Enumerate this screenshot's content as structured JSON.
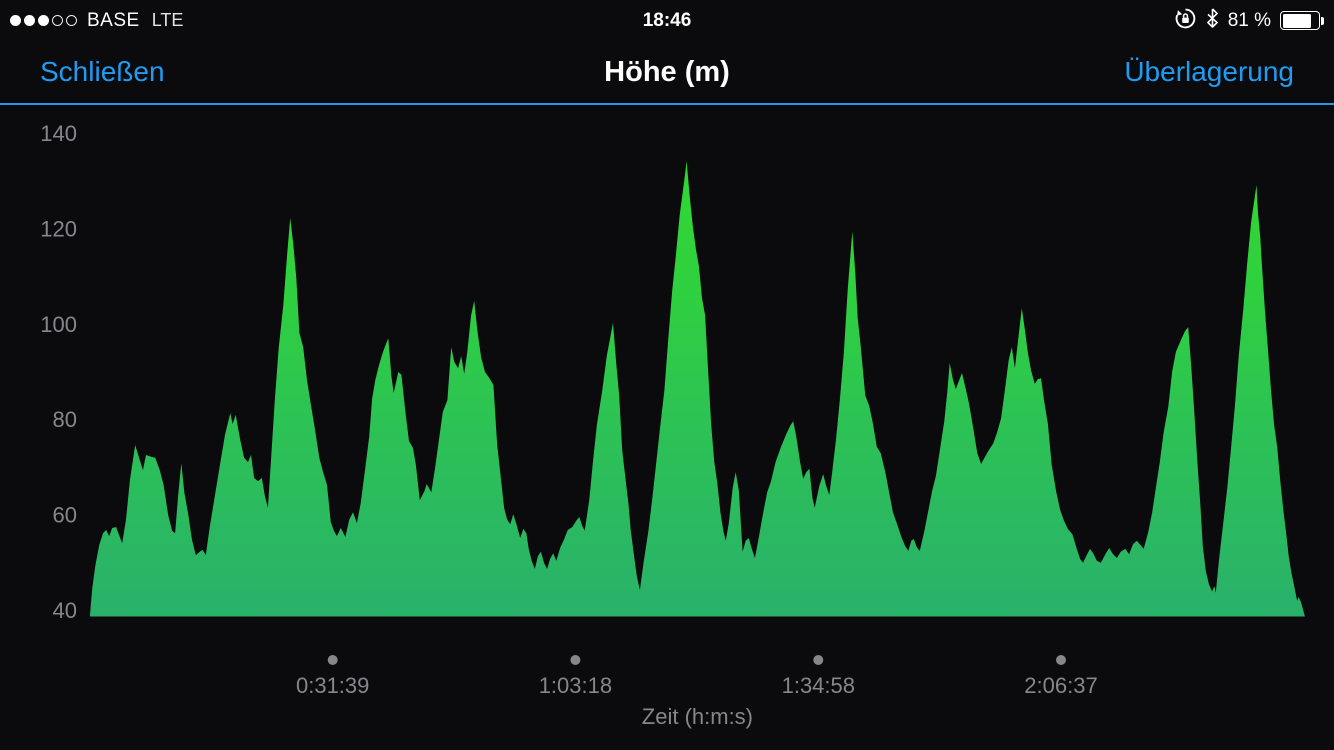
{
  "status_bar": {
    "carrier": "BASE",
    "network": "LTE",
    "time": "18:46",
    "signal": {
      "filled": 3,
      "total": 5
    },
    "battery": {
      "label": "81 %",
      "level": 0.81
    }
  },
  "nav_bar": {
    "close_label": "Schließen",
    "title": "Höhe (m)",
    "overlay_label": "Überlagerung"
  },
  "colors": {
    "accent_blue": "#1f9cf2",
    "area_gradient_top": "#31d92e",
    "area_gradient_bottom": "#29b16b",
    "axis_text": "#87878b",
    "background": "#0b0b0d"
  },
  "chart_data": {
    "type": "area",
    "title": "Höhe (m)",
    "xlabel": "Zeit (h:m:s)",
    "y_unit": "m",
    "grid": false,
    "legend": false,
    "ylim": [
      38.5,
      146
    ],
    "y_ticks": [
      140,
      120,
      100,
      80,
      60,
      40
    ],
    "x_ticks": [
      {
        "label": "0:31:39",
        "minutes": 31.65
      },
      {
        "label": "1:03:18",
        "minutes": 63.3
      },
      {
        "label": "1:34:58",
        "minutes": 94.97
      },
      {
        "label": "2:06:37",
        "minutes": 126.62
      }
    ],
    "total_minutes": 158.4,
    "profile_minutes_meters": [
      [
        0,
        39
      ],
      [
        0.3,
        44.6
      ],
      [
        0.7,
        49.4
      ],
      [
        1.2,
        53.6
      ],
      [
        1.7,
        56.1
      ],
      [
        2.1,
        56.8
      ],
      [
        2.5,
        55.5
      ],
      [
        2.9,
        57.2
      ],
      [
        3.4,
        57.4
      ],
      [
        3.8,
        55.7
      ],
      [
        4.2,
        54
      ],
      [
        4.7,
        58.9
      ],
      [
        5.2,
        67.2
      ],
      [
        5.9,
        74.6
      ],
      [
        6.4,
        71.9
      ],
      [
        6.9,
        69.3
      ],
      [
        7.3,
        72.5
      ],
      [
        8,
        72.1
      ],
      [
        8.5,
        71.9
      ],
      [
        9.1,
        69.3
      ],
      [
        9.6,
        66.2
      ],
      [
        10.2,
        59.9
      ],
      [
        10.7,
        56.6
      ],
      [
        11.1,
        56.1
      ],
      [
        11.5,
        64.1
      ],
      [
        11.9,
        70.8
      ],
      [
        12.3,
        64.7
      ],
      [
        12.8,
        60.1
      ],
      [
        13.3,
        54.7
      ],
      [
        13.8,
        51.5
      ],
      [
        14.3,
        52.2
      ],
      [
        14.7,
        52.6
      ],
      [
        15.1,
        51.5
      ],
      [
        15.6,
        57.2
      ],
      [
        16.3,
        64.1
      ],
      [
        17,
        71
      ],
      [
        17.6,
        76.7
      ],
      [
        18.3,
        81.3
      ],
      [
        18.6,
        79
      ],
      [
        19,
        80.9
      ],
      [
        19.6,
        75.6
      ],
      [
        20.1,
        71.9
      ],
      [
        20.6,
        71
      ],
      [
        21,
        72.5
      ],
      [
        21.4,
        67.7
      ],
      [
        21.9,
        67
      ],
      [
        22.4,
        67.7
      ],
      [
        22.8,
        63.9
      ],
      [
        23.2,
        61.4
      ],
      [
        23.6,
        71.4
      ],
      [
        24.1,
        84
      ],
      [
        24.6,
        94.9
      ],
      [
        25.2,
        103.9
      ],
      [
        25.7,
        114.4
      ],
      [
        26.1,
        122.2
      ],
      [
        26.5,
        116.9
      ],
      [
        26.9,
        109.6
      ],
      [
        27.3,
        98.1
      ],
      [
        27.8,
        95.1
      ],
      [
        28.3,
        88.2
      ],
      [
        28.8,
        83
      ],
      [
        29.3,
        78.2
      ],
      [
        29.9,
        71.9
      ],
      [
        30.4,
        68.9
      ],
      [
        30.9,
        66.2
      ],
      [
        31.4,
        58.4
      ],
      [
        31.8,
        56.6
      ],
      [
        32.2,
        55.5
      ],
      [
        32.7,
        57.2
      ],
      [
        33.3,
        55.3
      ],
      [
        33.8,
        58.9
      ],
      [
        34.3,
        60.5
      ],
      [
        34.8,
        58.2
      ],
      [
        35.3,
        62.4
      ],
      [
        35.9,
        69.8
      ],
      [
        36.4,
        76.3
      ],
      [
        36.8,
        84.4
      ],
      [
        37.2,
        88.2
      ],
      [
        37.7,
        91.4
      ],
      [
        38.2,
        94.1
      ],
      [
        38.9,
        97
      ],
      [
        39.3,
        89
      ],
      [
        39.6,
        85.5
      ],
      [
        40.2,
        89.9
      ],
      [
        40.6,
        89.3
      ],
      [
        41.1,
        81.9
      ],
      [
        41.6,
        75.4
      ],
      [
        42.1,
        74
      ],
      [
        42.5,
        70.4
      ],
      [
        43,
        63
      ],
      [
        43.6,
        64.9
      ],
      [
        43.9,
        66.4
      ],
      [
        44.5,
        64.7
      ],
      [
        45,
        69.8
      ],
      [
        45.5,
        75.6
      ],
      [
        46,
        81.5
      ],
      [
        46.6,
        84
      ],
      [
        47.1,
        95.1
      ],
      [
        47.5,
        92
      ],
      [
        48,
        90.7
      ],
      [
        48.4,
        93.2
      ],
      [
        48.8,
        89.5
      ],
      [
        49.2,
        94.1
      ],
      [
        49.7,
        101.8
      ],
      [
        50.1,
        104.8
      ],
      [
        50.5,
        98.7
      ],
      [
        51,
        93
      ],
      [
        51.5,
        89.9
      ],
      [
        52,
        88.8
      ],
      [
        52.6,
        87.2
      ],
      [
        53.1,
        74.6
      ],
      [
        53.6,
        67.2
      ],
      [
        54,
        61.4
      ],
      [
        54.4,
        58.9
      ],
      [
        54.8,
        58
      ],
      [
        55.2,
        60.1
      ],
      [
        55.7,
        57.4
      ],
      [
        56.1,
        55.1
      ],
      [
        56.5,
        57
      ],
      [
        56.9,
        56.1
      ],
      [
        57.2,
        52.8
      ],
      [
        57.6,
        50.3
      ],
      [
        58,
        48.6
      ],
      [
        58.4,
        51.3
      ],
      [
        58.8,
        52.2
      ],
      [
        59.2,
        49.9
      ],
      [
        59.6,
        48.6
      ],
      [
        60,
        50.7
      ],
      [
        60.4,
        51.9
      ],
      [
        60.8,
        50.3
      ],
      [
        61.3,
        53
      ],
      [
        61.8,
        54.7
      ],
      [
        62.3,
        56.8
      ],
      [
        62.9,
        57.4
      ],
      [
        63.4,
        58.7
      ],
      [
        63.8,
        59.5
      ],
      [
        64.2,
        57.6
      ],
      [
        64.5,
        56.6
      ],
      [
        65.1,
        63.1
      ],
      [
        65.6,
        71.4
      ],
      [
        66.1,
        78.8
      ],
      [
        66.8,
        86.1
      ],
      [
        67.4,
        93.4
      ],
      [
        67.9,
        97.6
      ],
      [
        68.2,
        100.2
      ],
      [
        68.6,
        92
      ],
      [
        69,
        84.9
      ],
      [
        69.4,
        73.5
      ],
      [
        69.8,
        67.9
      ],
      [
        70.2,
        62.4
      ],
      [
        70.5,
        56.8
      ],
      [
        70.9,
        51.9
      ],
      [
        71.3,
        47.1
      ],
      [
        71.7,
        44.2
      ],
      [
        72.2,
        50.1
      ],
      [
        72.8,
        56.4
      ],
      [
        73.3,
        63
      ],
      [
        73.8,
        70.4
      ],
      [
        74.3,
        77.7
      ],
      [
        74.9,
        86.1
      ],
      [
        75.4,
        96.6
      ],
      [
        75.9,
        106.7
      ],
      [
        76.4,
        114.4
      ],
      [
        76.9,
        122.8
      ],
      [
        77.5,
        130.1
      ],
      [
        77.8,
        134.1
      ],
      [
        78.2,
        126.8
      ],
      [
        78.6,
        120.5
      ],
      [
        79,
        115.7
      ],
      [
        79.4,
        112.1
      ],
      [
        79.8,
        105.4
      ],
      [
        80.2,
        101.8
      ],
      [
        80.6,
        90.3
      ],
      [
        81,
        78.8
      ],
      [
        81.4,
        71
      ],
      [
        81.8,
        66.6
      ],
      [
        82.2,
        60.5
      ],
      [
        82.6,
        56.4
      ],
      [
        82.9,
        54.5
      ],
      [
        83.3,
        58.2
      ],
      [
        83.8,
        65.6
      ],
      [
        84.2,
        68.9
      ],
      [
        84.6,
        65.1
      ],
      [
        85.1,
        52.2
      ],
      [
        85.5,
        54.5
      ],
      [
        85.9,
        55.1
      ],
      [
        86.3,
        52.8
      ],
      [
        86.7,
        50.9
      ],
      [
        87.2,
        55.1
      ],
      [
        87.8,
        60.5
      ],
      [
        88.3,
        64.7
      ],
      [
        88.8,
        67
      ],
      [
        89.4,
        71
      ],
      [
        90.1,
        74.2
      ],
      [
        90.8,
        76.9
      ],
      [
        91.3,
        78.6
      ],
      [
        91.7,
        79.6
      ],
      [
        92.1,
        76.3
      ],
      [
        92.6,
        71
      ],
      [
        93,
        67.5
      ],
      [
        93.4,
        68.9
      ],
      [
        93.8,
        69.6
      ],
      [
        94.2,
        63.5
      ],
      [
        94.5,
        61.4
      ],
      [
        95.1,
        66
      ],
      [
        95.6,
        68.5
      ],
      [
        96,
        66
      ],
      [
        96.4,
        64.1
      ],
      [
        96.8,
        69.3
      ],
      [
        97.3,
        76.1
      ],
      [
        97.8,
        84.4
      ],
      [
        98.3,
        94.1
      ],
      [
        98.8,
        107.1
      ],
      [
        99.4,
        119.4
      ],
      [
        99.8,
        110.2
      ],
      [
        100.1,
        101.2
      ],
      [
        100.5,
        95.3
      ],
      [
        101.1,
        84.9
      ],
      [
        101.6,
        82.8
      ],
      [
        102.1,
        79
      ],
      [
        102.6,
        74.2
      ],
      [
        103.1,
        72.9
      ],
      [
        103.7,
        68.9
      ],
      [
        104.2,
        64.7
      ],
      [
        104.7,
        60.5
      ],
      [
        105.2,
        58.2
      ],
      [
        105.8,
        55.3
      ],
      [
        106.3,
        53.4
      ],
      [
        106.7,
        52.4
      ],
      [
        107.1,
        54.5
      ],
      [
        107.4,
        54.9
      ],
      [
        107.8,
        53.2
      ],
      [
        108.2,
        52.4
      ],
      [
        108.8,
        56.6
      ],
      [
        109.3,
        60.7
      ],
      [
        109.8,
        64.9
      ],
      [
        110.3,
        68.1
      ],
      [
        110.8,
        73.3
      ],
      [
        111.4,
        79.6
      ],
      [
        111.8,
        85.9
      ],
      [
        112.1,
        91.8
      ],
      [
        112.5,
        88.4
      ],
      [
        112.9,
        86.3
      ],
      [
        113.3,
        88
      ],
      [
        113.7,
        89.7
      ],
      [
        114.1,
        87
      ],
      [
        114.6,
        83.4
      ],
      [
        115.1,
        78.8
      ],
      [
        115.7,
        72.9
      ],
      [
        116.2,
        70.6
      ],
      [
        116.7,
        72.1
      ],
      [
        117.2,
        73.5
      ],
      [
        117.8,
        75
      ],
      [
        118.3,
        77.3
      ],
      [
        118.8,
        80.2
      ],
      [
        119.3,
        86.1
      ],
      [
        119.8,
        92.4
      ],
      [
        120.2,
        95.1
      ],
      [
        120.6,
        90.7
      ],
      [
        121,
        96.2
      ],
      [
        121.5,
        103.3
      ],
      [
        121.9,
        98.7
      ],
      [
        122.3,
        93.9
      ],
      [
        122.7,
        90.3
      ],
      [
        123.2,
        87.4
      ],
      [
        123.6,
        88.4
      ],
      [
        124,
        88.6
      ],
      [
        124.4,
        84
      ],
      [
        124.9,
        79
      ],
      [
        125.4,
        70.4
      ],
      [
        126,
        64.7
      ],
      [
        126.5,
        61
      ],
      [
        127,
        58.7
      ],
      [
        127.5,
        57
      ],
      [
        128.1,
        55.9
      ],
      [
        128.6,
        53.2
      ],
      [
        129.1,
        50.7
      ],
      [
        129.5,
        49.9
      ],
      [
        129.9,
        51.3
      ],
      [
        130.4,
        52.8
      ],
      [
        130.8,
        51.9
      ],
      [
        131.3,
        50.3
      ],
      [
        131.8,
        49.9
      ],
      [
        132.4,
        51.7
      ],
      [
        132.9,
        53
      ],
      [
        133.4,
        51.7
      ],
      [
        133.9,
        50.9
      ],
      [
        134.4,
        52.2
      ],
      [
        135,
        52.8
      ],
      [
        135.5,
        51.7
      ],
      [
        136,
        53.8
      ],
      [
        136.5,
        54.5
      ],
      [
        137.1,
        53.4
      ],
      [
        137.4,
        52.8
      ],
      [
        138,
        56.4
      ],
      [
        138.5,
        60.5
      ],
      [
        139,
        65.8
      ],
      [
        139.5,
        71
      ],
      [
        140,
        77.3
      ],
      [
        140.6,
        82.6
      ],
      [
        141.1,
        89.9
      ],
      [
        141.6,
        94.1
      ],
      [
        142.3,
        96.8
      ],
      [
        142.8,
        98.5
      ],
      [
        143.2,
        99.3
      ],
      [
        143.6,
        90.9
      ],
      [
        144,
        81.5
      ],
      [
        144.4,
        71
      ],
      [
        144.8,
        61.6
      ],
      [
        145.1,
        53.4
      ],
      [
        145.5,
        48.2
      ],
      [
        145.9,
        45.4
      ],
      [
        146.3,
        43.9
      ],
      [
        146.6,
        45
      ],
      [
        146.8,
        43.6
      ],
      [
        147.2,
        50.3
      ],
      [
        147.7,
        57.2
      ],
      [
        148.3,
        65.6
      ],
      [
        148.8,
        74
      ],
      [
        149.3,
        83
      ],
      [
        149.8,
        93.4
      ],
      [
        150.4,
        103.3
      ],
      [
        150.9,
        112.9
      ],
      [
        151.4,
        121.3
      ],
      [
        152.1,
        129.1
      ],
      [
        152.3,
        123.2
      ],
      [
        152.6,
        118
      ],
      [
        152.8,
        112.7
      ],
      [
        153.2,
        102.9
      ],
      [
        153.6,
        94.5
      ],
      [
        154,
        86.1
      ],
      [
        154.4,
        78.8
      ],
      [
        154.8,
        74.2
      ],
      [
        155.2,
        67.2
      ],
      [
        155.6,
        61
      ],
      [
        156,
        55.7
      ],
      [
        156.3,
        51.3
      ],
      [
        156.7,
        47.5
      ],
      [
        157.1,
        44.4
      ],
      [
        157.4,
        41.9
      ],
      [
        157.6,
        42.7
      ],
      [
        157.9,
        41.7
      ],
      [
        158.2,
        40
      ],
      [
        158.4,
        38.7
      ]
    ]
  }
}
